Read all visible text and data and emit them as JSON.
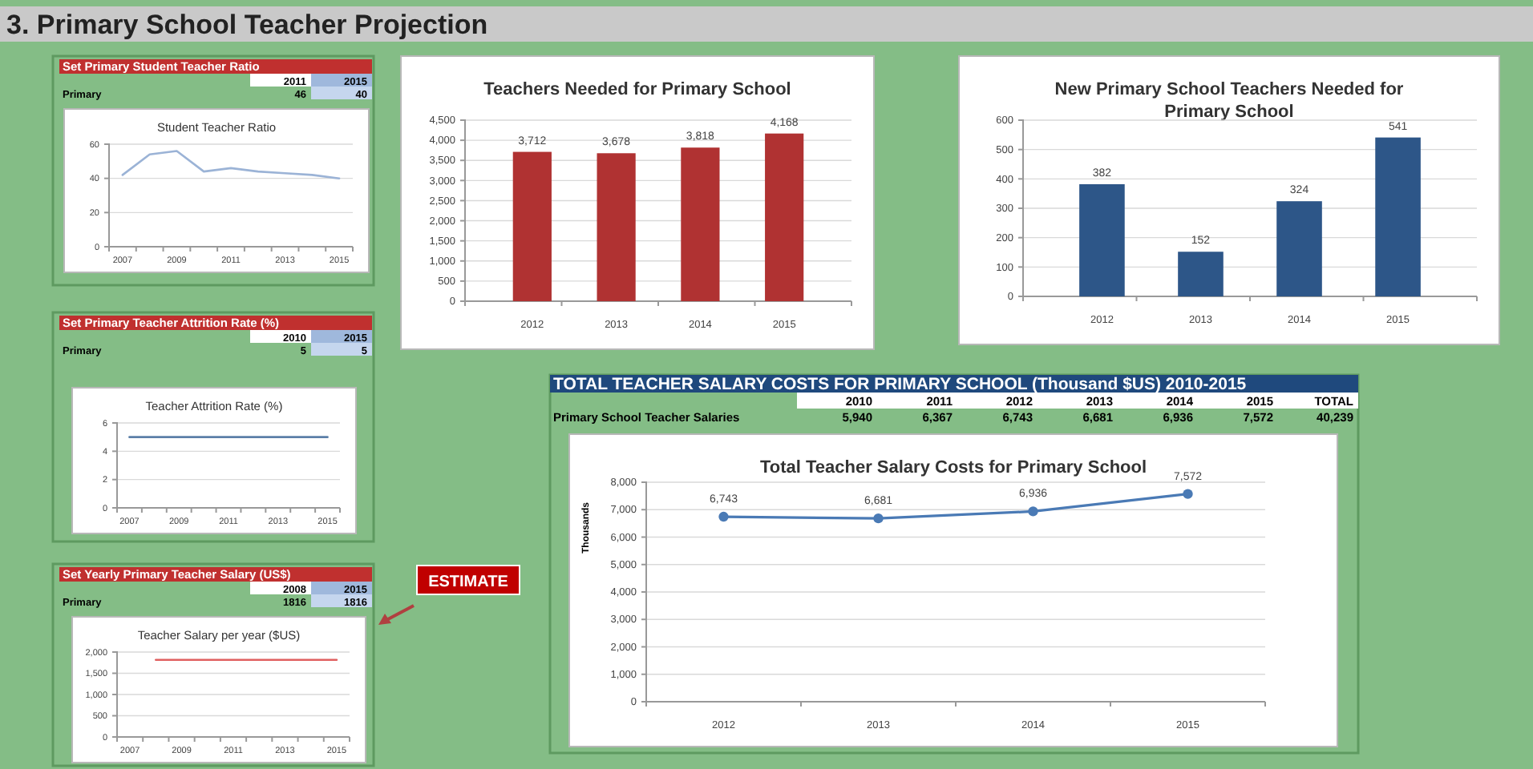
{
  "chart_data": [
    {
      "type": "other",
      "title": "3. Primary School Teacher Projection",
      "annotations": [
        "ESTIMATE"
      ]
    },
    {
      "type": "line",
      "title": "Student Teacher Ratio",
      "annotations": [
        "Set Primary Student Teacher Ratio",
        "2011",
        "2015",
        "Primary",
        "46",
        "40"
      ],
      "categories": [
        "2007",
        null,
        "2009",
        null,
        "2011",
        null,
        "2013",
        null,
        "2015"
      ],
      "values": [
        42,
        54,
        56,
        44,
        46,
        44,
        43,
        42,
        40
      ],
      "color": "#9bb3d6",
      "ylim": [
        0,
        60
      ],
      "yticks": [
        0,
        20,
        40,
        60
      ],
      "grid": "y"
    },
    {
      "type": "bar",
      "title": "Teachers Needed for Primary School",
      "categories": [
        "2012",
        "2013",
        "2014",
        "2015"
      ],
      "values": [
        3712,
        3678,
        3818,
        4168
      ],
      "value_labels": [
        "3,712",
        "3,678",
        "3,818",
        "4,168"
      ],
      "color": "#b03232",
      "ylim": [
        0,
        4500
      ],
      "yticks": [
        0,
        500,
        {
          "value": 1000,
          "label": "1,000"
        },
        {
          "value": 1500,
          "label": "1,500"
        },
        {
          "value": 2000,
          "label": "2,000"
        },
        {
          "value": 2500,
          "label": "2,500"
        },
        {
          "value": 3000,
          "label": "3,000"
        },
        {
          "value": 3500,
          "label": "3,500"
        },
        {
          "value": 4000,
          "label": "4,000"
        },
        {
          "value": 4500,
          "label": "4,500"
        }
      ],
      "grid": "y"
    },
    {
      "type": "bar",
      "title": "New Primary School Teachers Needed for Primary School",
      "categories": [
        "2012",
        "2013",
        "2014",
        "2015"
      ],
      "values": [
        382,
        152,
        324,
        541
      ],
      "color": "#2d5688",
      "ylim": [
        0,
        600
      ],
      "yticks": [
        0,
        100,
        200,
        300,
        400,
        500,
        600
      ],
      "grid": "y",
      "data_labels": true
    },
    {
      "type": "line",
      "title": "Teacher Attrition Rate (%)",
      "annotations": [
        "Set Primary Teacher Attrition Rate (%)",
        "2010",
        "2015",
        "Primary",
        "5",
        "5"
      ],
      "categories": [
        "2007",
        null,
        "2009",
        null,
        "2011",
        null,
        "2013",
        null,
        "2015"
      ],
      "values": [
        5,
        5,
        5,
        5,
        5,
        5,
        5,
        5,
        5
      ],
      "color": "#5b7fa8",
      "ylim": [
        0,
        6
      ],
      "yticks": [
        0,
        2,
        4,
        6
      ],
      "grid": "y"
    },
    {
      "type": "line",
      "title": "Total Teacher Salary Costs for Primary School",
      "ylabel": "Thousands",
      "annotations": [
        "TOTAL TEACHER SALARY COSTS FOR PRIMARY SCHOOL (Thousand $US) 2010-2015",
        "2010",
        "2011",
        "2012",
        "2013",
        "2014",
        "2015",
        "TOTAL",
        "Primary School Teacher Salaries",
        "5,940",
        "6,367",
        "6,743",
        "6,681",
        "6,936",
        "7,572",
        "40,239"
      ],
      "categories": [
        "2012",
        "2013",
        "2014",
        "2015"
      ],
      "values": [
        6743,
        6681,
        6936,
        7572
      ],
      "value_labels": [
        "6,743",
        "6,681",
        "6,936",
        "7,572"
      ],
      "color": "#4a7ab5",
      "marker": "circle",
      "ylim": [
        0,
        8000
      ],
      "yticks": [
        0,
        {
          "value": 1000,
          "label": "1,000"
        },
        {
          "value": 2000,
          "label": "2,000"
        },
        {
          "value": 3000,
          "label": "3,000"
        },
        {
          "value": 4000,
          "label": "4,000"
        },
        {
          "value": 5000,
          "label": "5,000"
        },
        {
          "value": 6000,
          "label": "6,000"
        },
        {
          "value": 7000,
          "label": "7,000"
        },
        {
          "value": 8000,
          "label": "8,000"
        }
      ],
      "grid": "y"
    },
    {
      "type": "line",
      "title": "Teacher Salary per year ($US)",
      "annotations": [
        "Set Yearly Primary Teacher Salary (US$)",
        "2008",
        "2015",
        "Primary",
        "1816",
        "1816"
      ],
      "categories": [
        "2007",
        null,
        "2009",
        null,
        "2011",
        null,
        "2013",
        null,
        "2015"
      ],
      "values": [
        null,
        1816,
        1816,
        1816,
        1816,
        1816,
        1816,
        1816,
        1816
      ],
      "color": "#e06060",
      "ylim": [
        0,
        2000
      ],
      "yticks": [
        0,
        500,
        {
          "value": 1000,
          "label": "1,000"
        },
        {
          "value": 1500,
          "label": "1,500"
        },
        {
          "value": 2000,
          "label": "2,000"
        }
      ],
      "grid": "y"
    }
  ]
}
